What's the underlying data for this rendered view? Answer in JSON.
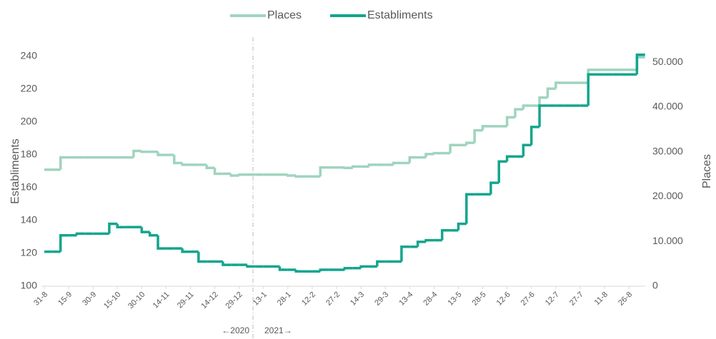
{
  "chart_data": {
    "type": "line",
    "step": true,
    "y_label": "Establiments",
    "y2_label": "Places",
    "annotations": [
      "←2020",
      "2021→"
    ],
    "categories": [
      "31-8",
      null,
      null,
      "15-9",
      null,
      null,
      "30-9",
      null,
      null,
      "15-10",
      null,
      null,
      "30-10",
      null,
      null,
      "14-11",
      null,
      null,
      "29-11",
      null,
      null,
      "14-12",
      null,
      null,
      "29-12",
      null,
      null,
      "13-1",
      null,
      null,
      "28-1",
      null,
      null,
      "12-2",
      null,
      null,
      "27-2",
      null,
      null,
      "14-3",
      null,
      null,
      "29-3",
      null,
      null,
      "13-4",
      null,
      null,
      "28-4",
      null,
      null,
      "13-5",
      null,
      null,
      "28-5",
      null,
      null,
      "12-6",
      null,
      null,
      "27-6",
      null,
      null,
      "12-7",
      null,
      null,
      "27-7",
      null,
      null,
      "11-8",
      null,
      null,
      "26-8",
      null,
      null
    ],
    "series": [
      {
        "name": "Places",
        "color": "#9fd4be",
        "axis": "y2",
        "values": [
          26000,
          26000,
          28750,
          28750,
          28750,
          28750,
          28750,
          28750,
          28750,
          28750,
          28750,
          30200,
          30000,
          30000,
          29300,
          29300,
          27500,
          27100,
          27100,
          27100,
          26400,
          25100,
          25100,
          24700,
          24900,
          24900,
          24900,
          24900,
          24900,
          24900,
          24700,
          24500,
          24500,
          24500,
          26500,
          26500,
          26500,
          26400,
          26700,
          26700,
          27100,
          27100,
          27100,
          27500,
          27500,
          28750,
          28750,
          29500,
          29700,
          29700,
          31500,
          31500,
          32000,
          34800,
          35700,
          35700,
          35700,
          37700,
          39500,
          40300,
          40300,
          42100,
          44100,
          45400,
          45400,
          45400,
          45400,
          48300,
          48300,
          48300,
          48300,
          48300,
          48300,
          51100,
          51100
        ]
      },
      {
        "name": "Establiments",
        "color": "#13a58d",
        "values": [
          121,
          121,
          131,
          131,
          132,
          132,
          132,
          132,
          138,
          136,
          136,
          136,
          133,
          131,
          123,
          123,
          123,
          121,
          121,
          115,
          115,
          115,
          113,
          113,
          113,
          112,
          112,
          112,
          112,
          110,
          110,
          109,
          109,
          109,
          110,
          110,
          110,
          111,
          111,
          112,
          112,
          115,
          115,
          115,
          124,
          124,
          127,
          128,
          128,
          134,
          134,
          138,
          156,
          156,
          156,
          163,
          176,
          179,
          179,
          186,
          197,
          210,
          210,
          210,
          210,
          210,
          210,
          229,
          229,
          229,
          229,
          229,
          229,
          241,
          241
        ]
      }
    ],
    "ylim": [
      100,
      240
    ],
    "yticks": [
      100,
      120,
      140,
      160,
      180,
      200,
      220,
      240
    ],
    "y2lim": [
      0,
      51300
    ],
    "y2ticks": [
      0,
      {
        "value": 10000,
        "label": "10.000"
      },
      {
        "value": 20000,
        "label": "20.000"
      },
      {
        "value": 30000,
        "label": "30.000"
      },
      {
        "value": 40000,
        "label": "40.000"
      },
      {
        "value": 50000,
        "label": "50.000"
      }
    ],
    "legend": "top"
  }
}
